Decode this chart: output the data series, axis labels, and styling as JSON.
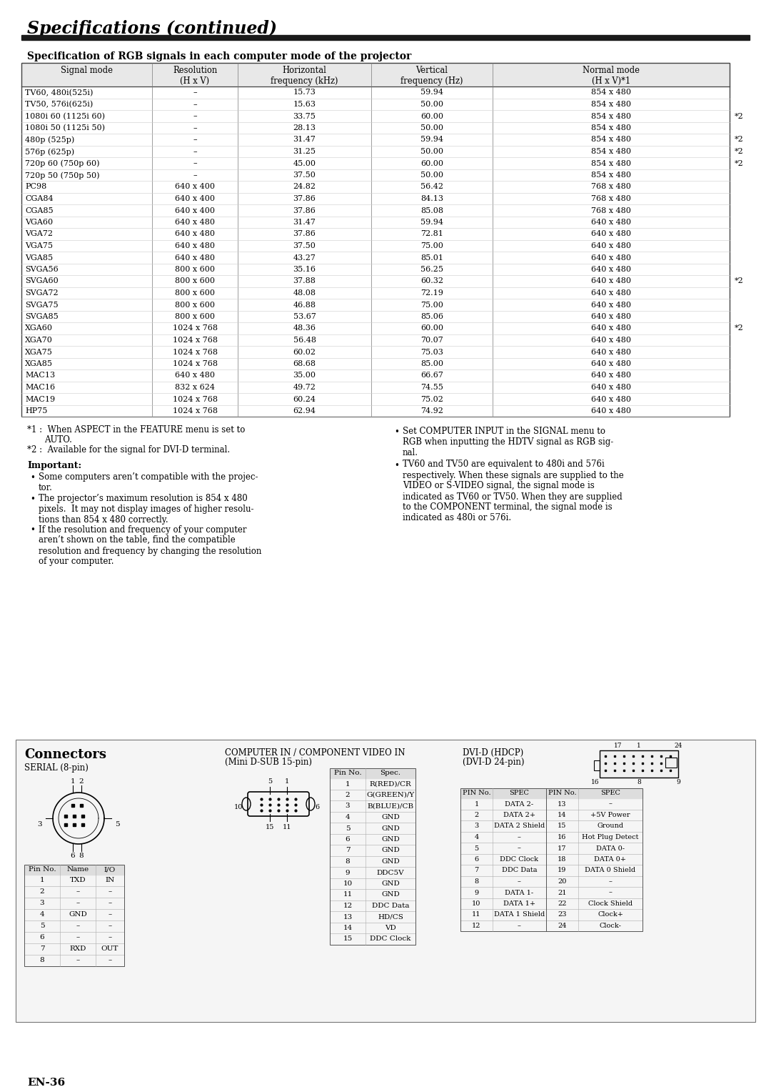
{
  "title": "Specifications (continued)",
  "section_title": "Specification of RGB signals in each computer mode of the projector",
  "table_headers": [
    "Signal mode",
    "Resolution\n(H x V)",
    "Horizontal\nfrequency (kHz)",
    "Vertical\nfrequency (Hz)",
    "Normal mode\n(H x V)*1"
  ],
  "table_data": [
    [
      "TV60, 480i(525i)",
      "–",
      "15.73",
      "59.94",
      "854 x 480",
      ""
    ],
    [
      "TV50, 576i(625i)",
      "–",
      "15.63",
      "50.00",
      "854 x 480",
      ""
    ],
    [
      "1080i 60 (1125i 60)",
      "–",
      "33.75",
      "60.00",
      "854 x 480",
      "*2"
    ],
    [
      "1080i 50 (1125i 50)",
      "–",
      "28.13",
      "50.00",
      "854 x 480",
      ""
    ],
    [
      "480p (525p)",
      "–",
      "31.47",
      "59.94",
      "854 x 480",
      "*2"
    ],
    [
      "576p (625p)",
      "–",
      "31.25",
      "50.00",
      "854 x 480",
      "*2"
    ],
    [
      "720p 60 (750p 60)",
      "–",
      "45.00",
      "60.00",
      "854 x 480",
      "*2"
    ],
    [
      "720p 50 (750p 50)",
      "–",
      "37.50",
      "50.00",
      "854 x 480",
      ""
    ],
    [
      "PC98",
      "640 x 400",
      "24.82",
      "56.42",
      "768 x 480",
      ""
    ],
    [
      "CGA84",
      "640 x 400",
      "37.86",
      "84.13",
      "768 x 480",
      ""
    ],
    [
      "CGA85",
      "640 x 400",
      "37.86",
      "85.08",
      "768 x 480",
      ""
    ],
    [
      "VGA60",
      "640 x 480",
      "31.47",
      "59.94",
      "640 x 480",
      ""
    ],
    [
      "VGA72",
      "640 x 480",
      "37.86",
      "72.81",
      "640 x 480",
      ""
    ],
    [
      "VGA75",
      "640 x 480",
      "37.50",
      "75.00",
      "640 x 480",
      ""
    ],
    [
      "VGA85",
      "640 x 480",
      "43.27",
      "85.01",
      "640 x 480",
      ""
    ],
    [
      "SVGA56",
      "800 x 600",
      "35.16",
      "56.25",
      "640 x 480",
      ""
    ],
    [
      "SVGA60",
      "800 x 600",
      "37.88",
      "60.32",
      "640 x 480",
      "*2"
    ],
    [
      "SVGA72",
      "800 x 600",
      "48.08",
      "72.19",
      "640 x 480",
      ""
    ],
    [
      "SVGA75",
      "800 x 600",
      "46.88",
      "75.00",
      "640 x 480",
      ""
    ],
    [
      "SVGA85",
      "800 x 600",
      "53.67",
      "85.06",
      "640 x 480",
      ""
    ],
    [
      "XGA60",
      "1024 x 768",
      "48.36",
      "60.00",
      "640 x 480",
      "*2"
    ],
    [
      "XGA70",
      "1024 x 768",
      "56.48",
      "70.07",
      "640 x 480",
      ""
    ],
    [
      "XGA75",
      "1024 x 768",
      "60.02",
      "75.03",
      "640 x 480",
      ""
    ],
    [
      "XGA85",
      "1024 x 768",
      "68.68",
      "85.00",
      "640 x 480",
      ""
    ],
    [
      "MAC13",
      "640 x 480",
      "35.00",
      "66.67",
      "640 x 480",
      ""
    ],
    [
      "MAC16",
      "832 x 624",
      "49.72",
      "74.55",
      "640 x 480",
      ""
    ],
    [
      "MAC19",
      "1024 x 768",
      "60.24",
      "75.02",
      "640 x 480",
      ""
    ],
    [
      "HP75",
      "1024 x 768",
      "62.94",
      "74.92",
      "640 x 480",
      ""
    ]
  ],
  "serial_table_data": [
    [
      "1",
      "TXD",
      "IN"
    ],
    [
      "2",
      "–",
      "–"
    ],
    [
      "3",
      "–",
      "–"
    ],
    [
      "4",
      "GND",
      "–"
    ],
    [
      "5",
      "–",
      "–"
    ],
    [
      "6",
      "–",
      "–"
    ],
    [
      "7",
      "RXD",
      "OUT"
    ],
    [
      "8",
      "–",
      "–"
    ]
  ],
  "comp_table_data": [
    [
      "1",
      "R(RED)/CR"
    ],
    [
      "2",
      "G(GREEN)/Y"
    ],
    [
      "3",
      "B(BLUE)/CB"
    ],
    [
      "4",
      "GND"
    ],
    [
      "5",
      "GND"
    ],
    [
      "6",
      "GND"
    ],
    [
      "7",
      "GND"
    ],
    [
      "8",
      "GND"
    ],
    [
      "9",
      "DDC5V"
    ],
    [
      "10",
      "GND"
    ],
    [
      "11",
      "GND"
    ],
    [
      "12",
      "DDC Data"
    ],
    [
      "13",
      "HD/CS"
    ],
    [
      "14",
      "VD"
    ],
    [
      "15",
      "DDC Clock"
    ]
  ],
  "dvi_table_data": [
    [
      "1",
      "DATA 2-",
      "13",
      "–"
    ],
    [
      "2",
      "DATA 2+",
      "14",
      "+5V Power"
    ],
    [
      "3",
      "DATA 2 Shield",
      "15",
      "Ground"
    ],
    [
      "4",
      "–",
      "16",
      "Hot Plug Detect"
    ],
    [
      "5",
      "–",
      "17",
      "DATA 0-"
    ],
    [
      "6",
      "DDC Clock",
      "18",
      "DATA 0+"
    ],
    [
      "7",
      "DDC Data",
      "19",
      "DATA 0 Shield"
    ],
    [
      "8",
      "–",
      "20",
      "–"
    ],
    [
      "9",
      "DATA 1-",
      "21",
      "–"
    ],
    [
      "10",
      "DATA 1+",
      "22",
      "Clock Shield"
    ],
    [
      "11",
      "DATA 1 Shield",
      "23",
      "Clock+"
    ],
    [
      "12",
      "–",
      "24",
      "Clock-"
    ]
  ],
  "page_number": "EN-36"
}
